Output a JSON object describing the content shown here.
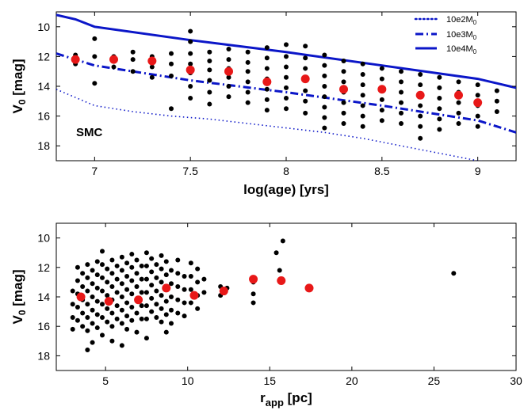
{
  "chart_data": [
    {
      "type": "scatter",
      "title": "",
      "xlabel": "log(age) [yrs]",
      "ylabel": "V0 [mag]",
      "ylabel_main": "V",
      "ylabel_sub": "0",
      "ylabel_rest": " [mag]",
      "xlim": [
        6.8,
        9.2
      ],
      "ylim": [
        19,
        9
      ],
      "y_inverted": true,
      "xticks": [
        7,
        7.5,
        8,
        8.5,
        9
      ],
      "xtick_labels": [
        "7",
        "7.5",
        "8",
        "8.5",
        "9"
      ],
      "yticks": [
        10,
        12,
        14,
        16,
        18
      ],
      "ytick_labels": [
        "10",
        "12",
        "14",
        "16",
        "18"
      ],
      "annotation": "SMC",
      "legend_position": "top-right",
      "legend": [
        {
          "label_main": "10e2M",
          "label_sub": "0",
          "style": "dotted"
        },
        {
          "label_main": "10e3M",
          "label_sub": "0",
          "style": "dashdot"
        },
        {
          "label_main": "10e4M",
          "label_sub": "0",
          "style": "solid"
        }
      ],
      "colors": {
        "lines": "#0b16c8",
        "points": "#000000",
        "means": "#e81818"
      },
      "lines": [
        {
          "name": "10e2M0",
          "style": "dotted",
          "x": [
            6.8,
            7.0,
            7.2,
            7.4,
            7.6,
            7.8,
            8.0,
            8.2,
            8.4,
            8.6,
            8.8,
            9.0,
            9.1
          ],
          "y": [
            14.2,
            15.3,
            15.7,
            16.0,
            16.2,
            16.5,
            16.8,
            17.1,
            17.5,
            18.0,
            18.5,
            19.0,
            19.2
          ]
        },
        {
          "name": "10e3M0",
          "style": "dashdot",
          "x": [
            6.8,
            7.0,
            7.5,
            8.0,
            8.5,
            9.0,
            9.2
          ],
          "y": [
            11.8,
            12.6,
            13.6,
            14.4,
            15.3,
            16.3,
            17.1
          ]
        },
        {
          "name": "10e4M0",
          "style": "solid",
          "x": [
            6.8,
            6.9,
            7.0,
            7.5,
            8.0,
            8.5,
            9.0,
            9.2
          ],
          "y": [
            9.2,
            9.5,
            10.0,
            10.9,
            11.7,
            12.6,
            13.5,
            14.1
          ]
        }
      ],
      "means": {
        "x": [
          6.9,
          7.1,
          7.3,
          7.5,
          7.7,
          7.9,
          8.1,
          8.3,
          8.5,
          8.7,
          8.9,
          9.0
        ],
        "y": [
          12.2,
          12.2,
          12.3,
          12.9,
          13.0,
          13.7,
          13.5,
          14.2,
          14.2,
          14.6,
          14.6,
          15.1
        ]
      },
      "points": [
        [
          6.9,
          11.9
        ],
        [
          6.9,
          12.5
        ],
        [
          7.0,
          10.8
        ],
        [
          7.0,
          12.0
        ],
        [
          7.0,
          13.8
        ],
        [
          7.1,
          12.0
        ],
        [
          7.1,
          12.7
        ],
        [
          7.2,
          11.7
        ],
        [
          7.2,
          12.2
        ],
        [
          7.2,
          13.0
        ],
        [
          7.3,
          12.0
        ],
        [
          7.3,
          12.7
        ],
        [
          7.3,
          13.4
        ],
        [
          7.4,
          11.8
        ],
        [
          7.4,
          12.5
        ],
        [
          7.4,
          13.3
        ],
        [
          7.4,
          15.5
        ],
        [
          7.5,
          10.3
        ],
        [
          7.5,
          11.0
        ],
        [
          7.5,
          11.8
        ],
        [
          7.5,
          12.5
        ],
        [
          7.5,
          13.1
        ],
        [
          7.5,
          14.0
        ],
        [
          7.5,
          14.8
        ],
        [
          7.6,
          11.7
        ],
        [
          7.6,
          12.3
        ],
        [
          7.6,
          12.9
        ],
        [
          7.6,
          13.6
        ],
        [
          7.6,
          14.4
        ],
        [
          7.6,
          15.2
        ],
        [
          7.7,
          11.5
        ],
        [
          7.7,
          12.2
        ],
        [
          7.7,
          12.8
        ],
        [
          7.7,
          13.4
        ],
        [
          7.7,
          14.0
        ],
        [
          7.7,
          14.7
        ],
        [
          7.8,
          11.7
        ],
        [
          7.8,
          12.4
        ],
        [
          7.8,
          13.0
        ],
        [
          7.8,
          13.7
        ],
        [
          7.8,
          14.4
        ],
        [
          7.8,
          15.1
        ],
        [
          7.9,
          11.4
        ],
        [
          7.9,
          12.1
        ],
        [
          7.9,
          12.8
        ],
        [
          7.9,
          13.5
        ],
        [
          7.9,
          14.2
        ],
        [
          7.9,
          14.9
        ],
        [
          7.9,
          15.6
        ],
        [
          8.0,
          11.2
        ],
        [
          8.0,
          12.0
        ],
        [
          8.0,
          12.7
        ],
        [
          8.0,
          13.4
        ],
        [
          8.0,
          14.1
        ],
        [
          8.0,
          14.8
        ],
        [
          8.0,
          15.5
        ],
        [
          8.1,
          11.3
        ],
        [
          8.1,
          12.1
        ],
        [
          8.1,
          12.8
        ],
        [
          8.1,
          13.6
        ],
        [
          8.1,
          14.3
        ],
        [
          8.1,
          15.0
        ],
        [
          8.1,
          15.8
        ],
        [
          8.2,
          11.9
        ],
        [
          8.2,
          12.6
        ],
        [
          8.2,
          13.3
        ],
        [
          8.2,
          14.0
        ],
        [
          8.2,
          14.7
        ],
        [
          8.2,
          15.4
        ],
        [
          8.2,
          16.1
        ],
        [
          8.2,
          16.8
        ],
        [
          8.3,
          12.3
        ],
        [
          8.3,
          13.0
        ],
        [
          8.3,
          13.7
        ],
        [
          8.3,
          14.4
        ],
        [
          8.3,
          15.1
        ],
        [
          8.3,
          15.8
        ],
        [
          8.3,
          16.5
        ],
        [
          8.4,
          12.5
        ],
        [
          8.4,
          13.2
        ],
        [
          8.4,
          13.9
        ],
        [
          8.4,
          14.6
        ],
        [
          8.4,
          15.3
        ],
        [
          8.4,
          16.0
        ],
        [
          8.4,
          16.7
        ],
        [
          8.5,
          12.8
        ],
        [
          8.5,
          13.5
        ],
        [
          8.5,
          14.2
        ],
        [
          8.5,
          14.9
        ],
        [
          8.5,
          15.6
        ],
        [
          8.5,
          16.3
        ],
        [
          8.6,
          13.0
        ],
        [
          8.6,
          13.7
        ],
        [
          8.6,
          14.4
        ],
        [
          8.6,
          15.1
        ],
        [
          8.6,
          15.8
        ],
        [
          8.6,
          16.5
        ],
        [
          8.7,
          13.2
        ],
        [
          8.7,
          13.9
        ],
        [
          8.7,
          14.6
        ],
        [
          8.7,
          15.3
        ],
        [
          8.7,
          16.0
        ],
        [
          8.7,
          16.7
        ],
        [
          8.7,
          17.5
        ],
        [
          8.8,
          13.4
        ],
        [
          8.8,
          14.1
        ],
        [
          8.8,
          14.8
        ],
        [
          8.8,
          15.5
        ],
        [
          8.8,
          16.2
        ],
        [
          8.8,
          16.9
        ],
        [
          8.9,
          13.7
        ],
        [
          8.9,
          14.4
        ],
        [
          8.9,
          15.1
        ],
        [
          8.9,
          15.8
        ],
        [
          8.9,
          16.5
        ],
        [
          9.0,
          13.9
        ],
        [
          9.0,
          14.6
        ],
        [
          9.0,
          15.3
        ],
        [
          9.0,
          16.0
        ],
        [
          9.0,
          16.7
        ],
        [
          9.1,
          14.3
        ],
        [
          9.1,
          15.0
        ],
        [
          9.1,
          15.7
        ]
      ]
    },
    {
      "type": "scatter",
      "title": "",
      "xlabel_main": "r",
      "xlabel_sub": "app",
      "xlabel_rest": " [pc]",
      "ylabel": "V0 [mag]",
      "ylabel_main": "V",
      "ylabel_sub": "0",
      "ylabel_rest": " [mag]",
      "xlim": [
        2,
        30
      ],
      "ylim": [
        19,
        9
      ],
      "y_inverted": true,
      "xticks": [
        5,
        10,
        15,
        20,
        25,
        30
      ],
      "xtick_labels": [
        "5",
        "10",
        "15",
        "20",
        "25",
        "30"
      ],
      "yticks": [
        10,
        12,
        14,
        16,
        18
      ],
      "ytick_labels": [
        "10",
        "12",
        "14",
        "16",
        "18"
      ],
      "colors": {
        "points": "#000000",
        "means": "#e81818"
      },
      "means": {
        "x": [
          3.5,
          5.2,
          7.0,
          8.7,
          10.4,
          12.2,
          14.0,
          15.7,
          17.4
        ],
        "y": [
          14.0,
          14.3,
          14.2,
          13.4,
          13.9,
          13.6,
          12.8,
          12.9,
          13.4
        ]
      },
      "points": [
        [
          3.0,
          13.6
        ],
        [
          3.0,
          14.5
        ],
        [
          3.0,
          15.4
        ],
        [
          3.0,
          16.2
        ],
        [
          3.3,
          12.0
        ],
        [
          3.3,
          12.9
        ],
        [
          3.3,
          13.8
        ],
        [
          3.3,
          14.7
        ],
        [
          3.3,
          15.6
        ],
        [
          3.6,
          12.4
        ],
        [
          3.6,
          13.3
        ],
        [
          3.6,
          14.2
        ],
        [
          3.6,
          15.1
        ],
        [
          3.6,
          16.0
        ],
        [
          3.9,
          11.8
        ],
        [
          3.9,
          12.7
        ],
        [
          3.9,
          13.6
        ],
        [
          3.9,
          14.5
        ],
        [
          3.9,
          15.4
        ],
        [
          3.9,
          16.3
        ],
        [
          3.9,
          17.6
        ],
        [
          4.2,
          12.2
        ],
        [
          4.2,
          13.1
        ],
        [
          4.2,
          14.0
        ],
        [
          4.2,
          14.9
        ],
        [
          4.2,
          15.8
        ],
        [
          4.2,
          17.1
        ],
        [
          4.5,
          11.6
        ],
        [
          4.5,
          12.5
        ],
        [
          4.5,
          13.4
        ],
        [
          4.5,
          14.3
        ],
        [
          4.5,
          15.2
        ],
        [
          4.5,
          16.1
        ],
        [
          4.8,
          10.9
        ],
        [
          4.8,
          11.8
        ],
        [
          4.8,
          12.7
        ],
        [
          4.8,
          13.6
        ],
        [
          4.8,
          14.5
        ],
        [
          4.8,
          15.4
        ],
        [
          4.8,
          16.6
        ],
        [
          5.1,
          12.1
        ],
        [
          5.1,
          13.0
        ],
        [
          5.1,
          13.9
        ],
        [
          5.1,
          14.8
        ],
        [
          5.1,
          15.7
        ],
        [
          5.4,
          11.5
        ],
        [
          5.4,
          12.4
        ],
        [
          5.4,
          13.3
        ],
        [
          5.4,
          14.2
        ],
        [
          5.4,
          15.1
        ],
        [
          5.4,
          16.0
        ],
        [
          5.4,
          17.0
        ],
        [
          5.7,
          11.9
        ],
        [
          5.7,
          12.8
        ],
        [
          5.7,
          13.7
        ],
        [
          5.7,
          14.6
        ],
        [
          5.7,
          15.5
        ],
        [
          6.0,
          11.3
        ],
        [
          6.0,
          12.2
        ],
        [
          6.0,
          13.1
        ],
        [
          6.0,
          14.0
        ],
        [
          6.0,
          14.9
        ],
        [
          6.0,
          15.8
        ],
        [
          6.0,
          17.3
        ],
        [
          6.3,
          11.7
        ],
        [
          6.3,
          12.6
        ],
        [
          6.3,
          13.5
        ],
        [
          6.3,
          14.4
        ],
        [
          6.3,
          15.3
        ],
        [
          6.3,
          16.2
        ],
        [
          6.6,
          11.1
        ],
        [
          6.6,
          12.0
        ],
        [
          6.6,
          12.9
        ],
        [
          6.6,
          13.8
        ],
        [
          6.6,
          14.7
        ],
        [
          6.6,
          15.6
        ],
        [
          6.9,
          11.5
        ],
        [
          6.9,
          12.4
        ],
        [
          6.9,
          13.3
        ],
        [
          6.9,
          14.2
        ],
        [
          6.9,
          15.1
        ],
        [
          6.9,
          16.4
        ],
        [
          7.2,
          11.9
        ],
        [
          7.2,
          12.8
        ],
        [
          7.2,
          13.7
        ],
        [
          7.2,
          14.6
        ],
        [
          7.2,
          15.5
        ],
        [
          7.5,
          11.0
        ],
        [
          7.5,
          11.9
        ],
        [
          7.5,
          12.8
        ],
        [
          7.5,
          13.7
        ],
        [
          7.5,
          14.6
        ],
        [
          7.5,
          15.5
        ],
        [
          7.5,
          16.8
        ],
        [
          7.8,
          11.4
        ],
        [
          7.8,
          12.3
        ],
        [
          7.8,
          13.2
        ],
        [
          7.8,
          14.1
        ],
        [
          7.8,
          15.0
        ],
        [
          8.1,
          11.8
        ],
        [
          8.1,
          12.7
        ],
        [
          8.1,
          13.6
        ],
        [
          8.1,
          14.5
        ],
        [
          8.1,
          15.4
        ],
        [
          8.4,
          11.2
        ],
        [
          8.4,
          12.1
        ],
        [
          8.4,
          13.0
        ],
        [
          8.4,
          13.9
        ],
        [
          8.4,
          14.8
        ],
        [
          8.4,
          15.7
        ],
        [
          8.7,
          11.6
        ],
        [
          8.7,
          12.5
        ],
        [
          8.7,
          13.4
        ],
        [
          8.7,
          14.3
        ],
        [
          8.7,
          15.2
        ],
        [
          8.7,
          16.4
        ],
        [
          9.0,
          12.2
        ],
        [
          9.0,
          13.1
        ],
        [
          9.0,
          14.0
        ],
        [
          9.0,
          14.9
        ],
        [
          9.0,
          15.8
        ],
        [
          9.4,
          11.5
        ],
        [
          9.4,
          12.4
        ],
        [
          9.4,
          13.3
        ],
        [
          9.4,
          14.2
        ],
        [
          9.4,
          15.1
        ],
        [
          9.8,
          12.6
        ],
        [
          9.8,
          13.5
        ],
        [
          9.8,
          14.4
        ],
        [
          9.8,
          15.3
        ],
        [
          10.2,
          11.7
        ],
        [
          10.2,
          12.6
        ],
        [
          10.2,
          13.5
        ],
        [
          10.2,
          14.4
        ],
        [
          10.6,
          12.1
        ],
        [
          10.6,
          13.0
        ],
        [
          10.6,
          13.9
        ],
        [
          10.6,
          14.8
        ],
        [
          11.0,
          12.8
        ],
        [
          11.0,
          13.7
        ],
        [
          12.0,
          13.3
        ],
        [
          12.0,
          13.9
        ],
        [
          12.4,
          13.4
        ],
        [
          14.0,
          13.0
        ],
        [
          14.0,
          13.8
        ],
        [
          14.0,
          14.4
        ],
        [
          15.4,
          11.0
        ],
        [
          15.6,
          12.2
        ],
        [
          15.8,
          10.2
        ],
        [
          26.2,
          12.4
        ]
      ]
    }
  ]
}
